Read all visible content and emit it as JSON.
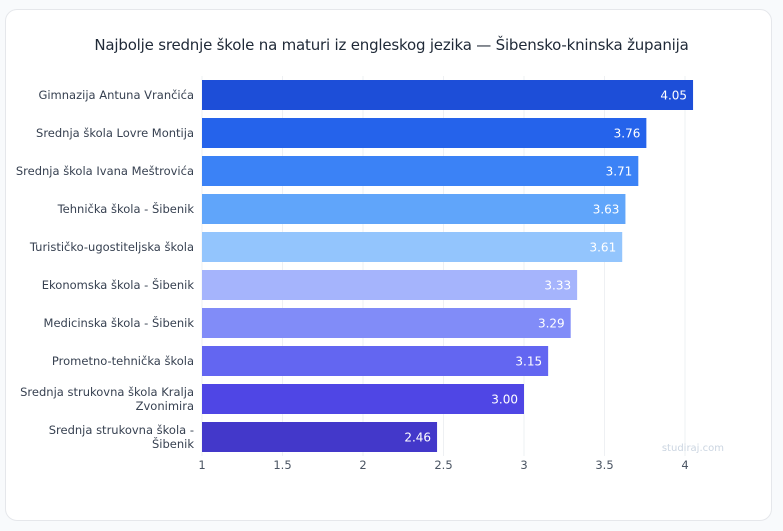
{
  "chart_data": {
    "type": "bar",
    "orientation": "horizontal",
    "title": "Najbolje srednje škole na maturi iz engleskog jezika — Šibensko-kninska županija",
    "categories": [
      [
        "Gimnazija Antuna Vrančića"
      ],
      [
        "Srednja škola Lovre Montija"
      ],
      [
        "Srednja škola Ivana Meštrovića"
      ],
      [
        "Tehnička škola - Šibenik"
      ],
      [
        "Turističko-ugostiteljska škola"
      ],
      [
        "Ekonomska škola - Šibenik"
      ],
      [
        "Medicinska škola - Šibenik"
      ],
      [
        "Prometno-tehnička škola"
      ],
      [
        "Srednja strukovna škola Kralja",
        "Zvonimira"
      ],
      [
        "Srednja strukovna škola -",
        "Šibenik"
      ]
    ],
    "values": [
      4.05,
      3.76,
      3.71,
      3.63,
      3.61,
      3.33,
      3.29,
      3.15,
      3.0,
      2.46
    ],
    "value_labels": [
      "4.05",
      "3.76",
      "3.71",
      "3.63",
      "3.61",
      "3.33",
      "3.29",
      "3.15",
      "3.00",
      "2.46"
    ],
    "colors": [
      "#1d4ed8",
      "#2563eb",
      "#3b82f6",
      "#60a5fa",
      "#93c5fd",
      "#a5b4fc",
      "#818cf8",
      "#6366f1",
      "#4f46e5",
      "#4338ca"
    ],
    "xlim": [
      1,
      4.1
    ],
    "xticks": [
      1,
      1.5,
      2,
      2.5,
      3,
      3.5,
      4
    ],
    "xtick_labels": [
      "1",
      "1.5",
      "2",
      "2.5",
      "3",
      "3.5",
      "4"
    ],
    "xlabel": "",
    "ylabel": "",
    "grid": true,
    "watermark": "studiraj.com"
  }
}
